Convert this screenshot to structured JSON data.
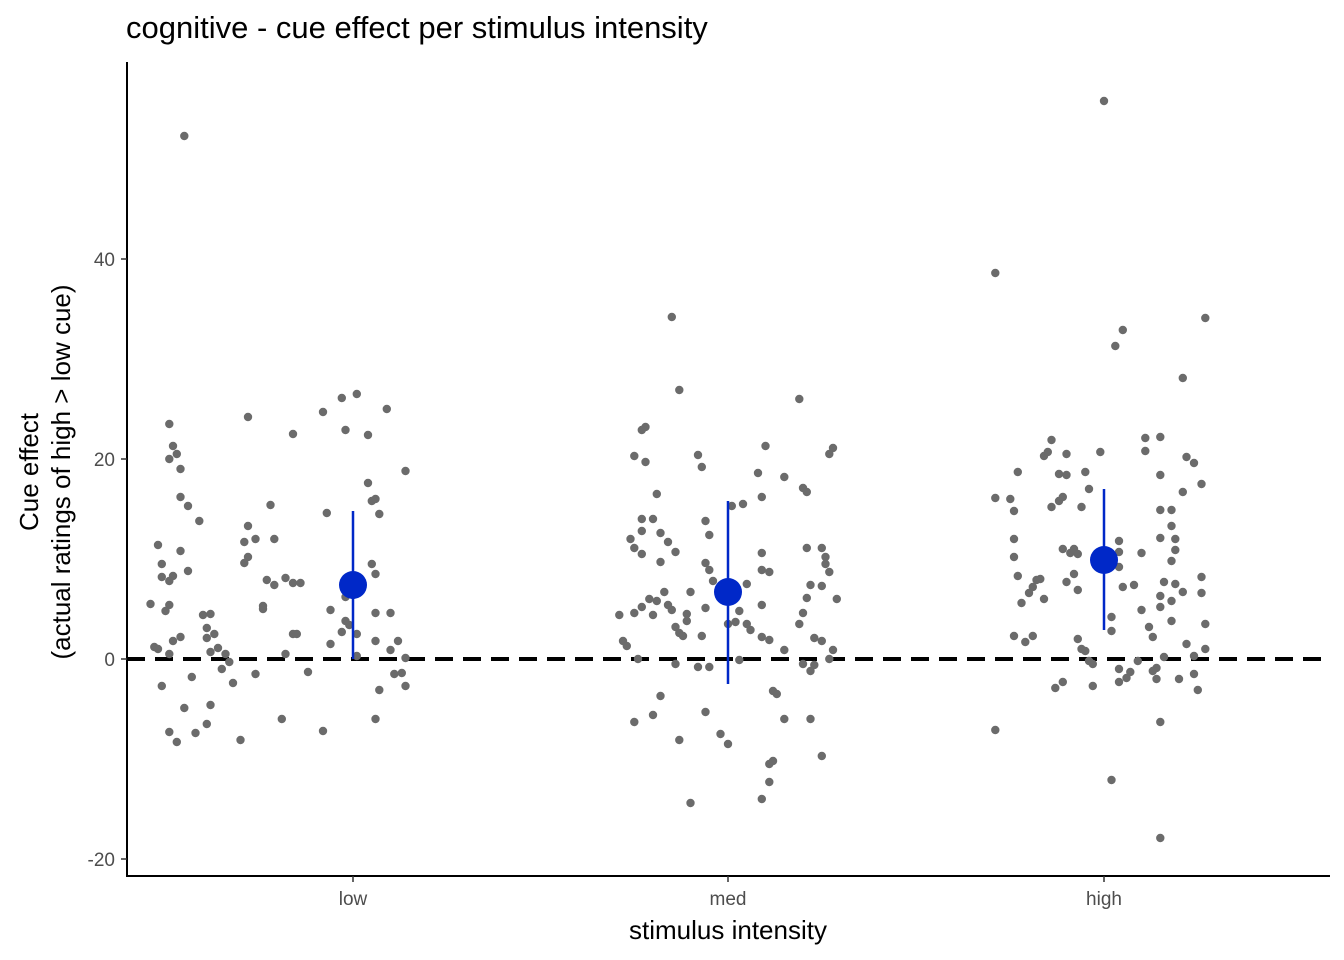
{
  "chart_data": {
    "type": "scatter",
    "title": "cognitive - cue effect per stimulus intensity",
    "xlabel": "stimulus intensity",
    "ylabel_lines": [
      "Cue effect",
      "(actual ratings of high > low cue)"
    ],
    "categories": [
      "low",
      "med",
      "high"
    ],
    "ylim": [
      -21.5,
      60
    ],
    "yticks": [
      -20,
      0,
      20,
      40
    ],
    "ytick_labels": [
      "-20",
      "0",
      "20",
      "40"
    ],
    "reference_line": 0,
    "grid": false,
    "colors": {
      "points": "#6b6b6b",
      "summary": "#0028c8",
      "reference": "#000000"
    },
    "points": {
      "low": [
        [
          -0.45,
          52.3
        ],
        [
          -0.49,
          23.5
        ],
        [
          -0.48,
          21.3
        ],
        [
          -0.47,
          20.5
        ],
        [
          -0.49,
          20.0
        ],
        [
          -0.46,
          19.0
        ],
        [
          -0.46,
          16.2
        ],
        [
          -0.44,
          15.3
        ],
        [
          -0.41,
          13.8
        ],
        [
          -0.52,
          11.4
        ],
        [
          -0.46,
          10.8
        ],
        [
          -0.51,
          9.5
        ],
        [
          -0.44,
          8.8
        ],
        [
          -0.48,
          8.3
        ],
        [
          -0.51,
          8.2
        ],
        [
          -0.49,
          7.8
        ],
        [
          -0.54,
          5.5
        ],
        [
          -0.49,
          5.4
        ],
        [
          -0.5,
          4.8
        ],
        [
          -0.53,
          1.2
        ],
        [
          -0.52,
          1.0
        ],
        [
          -0.49,
          0.5
        ],
        [
          -0.46,
          2.2
        ],
        [
          -0.48,
          1.8
        ],
        [
          -0.43,
          -1.8
        ],
        [
          -0.51,
          -2.7
        ],
        [
          -0.45,
          -4.9
        ],
        [
          -0.49,
          -7.3
        ],
        [
          -0.47,
          -8.3
        ],
        [
          -0.42,
          -7.4
        ],
        [
          -0.4,
          4.4
        ],
        [
          -0.39,
          3.1
        ],
        [
          -0.38,
          4.5
        ],
        [
          -0.37,
          2.5
        ],
        [
          -0.39,
          2.1
        ],
        [
          -0.36,
          1.1
        ],
        [
          -0.38,
          0.7
        ],
        [
          -0.35,
          -1.0
        ],
        [
          -0.38,
          -4.6
        ],
        [
          -0.39,
          -6.5
        ],
        [
          -0.32,
          -2.4
        ],
        [
          -0.34,
          0.5
        ],
        [
          -0.33,
          -0.3
        ],
        [
          -0.28,
          24.2
        ],
        [
          -0.28,
          13.3
        ],
        [
          -0.29,
          11.7
        ],
        [
          -0.26,
          12.0
        ],
        [
          -0.28,
          10.2
        ],
        [
          -0.29,
          9.6
        ],
        [
          -0.3,
          -8.1
        ],
        [
          -0.22,
          15.4
        ],
        [
          -0.21,
          12.0
        ],
        [
          -0.23,
          7.9
        ],
        [
          -0.21,
          7.4
        ],
        [
          -0.24,
          5.3
        ],
        [
          -0.24,
          5.0
        ],
        [
          -0.26,
          -1.5
        ],
        [
          -0.18,
          8.1
        ],
        [
          -0.16,
          7.6
        ],
        [
          -0.16,
          2.5
        ],
        [
          -0.15,
          2.5
        ],
        [
          -0.18,
          0.5
        ],
        [
          -0.19,
          -6.0
        ],
        [
          -0.16,
          22.5
        ],
        [
          -0.14,
          7.6
        ],
        [
          -0.12,
          -1.3
        ],
        [
          -0.08,
          24.7
        ],
        [
          -0.07,
          14.6
        ],
        [
          -0.06,
          4.9
        ],
        [
          -0.06,
          1.5
        ],
        [
          -0.08,
          -7.2
        ],
        [
          -0.03,
          26.1
        ],
        [
          -0.02,
          22.9
        ],
        [
          0.0,
          6.4
        ],
        [
          -0.02,
          6.2
        ],
        [
          -0.03,
          2.7
        ],
        [
          0.01,
          2.5
        ],
        [
          -0.01,
          3.4
        ],
        [
          0.01,
          0.3
        ],
        [
          -0.02,
          3.8
        ],
        [
          0.04,
          17.6
        ],
        [
          0.05,
          15.8
        ],
        [
          0.06,
          16.0
        ],
        [
          0.07,
          14.5
        ],
        [
          0.05,
          9.5
        ],
        [
          0.04,
          22.4
        ],
        [
          0.09,
          25.0
        ],
        [
          0.06,
          8.5
        ],
        [
          0.06,
          4.6
        ],
        [
          0.1,
          4.6
        ],
        [
          0.06,
          1.8
        ],
        [
          0.07,
          -3.1
        ],
        [
          0.06,
          -6.0
        ],
        [
          0.1,
          0.9
        ],
        [
          0.12,
          1.8
        ],
        [
          0.13,
          -1.4
        ],
        [
          0.14,
          0.1
        ],
        [
          0.14,
          -2.7
        ],
        [
          0.14,
          18.8
        ],
        [
          0.11,
          -1.5
        ],
        [
          0.01,
          26.5
        ]
      ],
      "med": [
        [
          -0.29,
          4.4
        ],
        [
          -0.28,
          1.8
        ],
        [
          -0.25,
          20.3
        ],
        [
          -0.24,
          0.0
        ],
        [
          -0.25,
          -6.3
        ],
        [
          -0.22,
          23.2
        ],
        [
          -0.23,
          22.9
        ],
        [
          -0.22,
          19.7
        ],
        [
          -0.23,
          14.0
        ],
        [
          -0.23,
          12.8
        ],
        [
          -0.26,
          12.0
        ],
        [
          -0.25,
          11.1
        ],
        [
          -0.23,
          10.5
        ],
        [
          -0.21,
          6.0
        ],
        [
          -0.23,
          5.2
        ],
        [
          -0.25,
          4.6
        ],
        [
          -0.27,
          1.3
        ],
        [
          -0.2,
          -5.6
        ],
        [
          -0.18,
          -3.7
        ],
        [
          -0.19,
          16.5
        ],
        [
          -0.2,
          14.0
        ],
        [
          -0.18,
          12.6
        ],
        [
          -0.18,
          9.7
        ],
        [
          -0.17,
          6.7
        ],
        [
          -0.19,
          5.8
        ],
        [
          -0.2,
          4.4
        ],
        [
          -0.15,
          34.2
        ],
        [
          -0.13,
          26.9
        ],
        [
          -0.16,
          11.7
        ],
        [
          -0.14,
          10.7
        ],
        [
          -0.16,
          5.4
        ],
        [
          -0.15,
          4.9
        ],
        [
          -0.14,
          3.2
        ],
        [
          -0.13,
          2.6
        ],
        [
          -0.12,
          2.3
        ],
        [
          -0.11,
          3.8
        ],
        [
          -0.1,
          6.7
        ],
        [
          -0.11,
          4.5
        ],
        [
          -0.14,
          -0.5
        ],
        [
          -0.13,
          -8.1
        ],
        [
          -0.1,
          -14.4
        ],
        [
          -0.08,
          20.4
        ],
        [
          -0.07,
          19.2
        ],
        [
          -0.06,
          13.8
        ],
        [
          -0.05,
          12.4
        ],
        [
          -0.06,
          9.6
        ],
        [
          -0.05,
          8.9
        ],
        [
          -0.04,
          7.8
        ],
        [
          -0.06,
          5.1
        ],
        [
          -0.07,
          2.3
        ],
        [
          -0.08,
          -0.8
        ],
        [
          -0.05,
          -0.8
        ],
        [
          -0.06,
          -5.3
        ],
        [
          -0.02,
          -7.5
        ],
        [
          0.0,
          -8.5
        ],
        [
          0.01,
          15.3
        ],
        [
          0.03,
          4.8
        ],
        [
          0.02,
          3.7
        ],
        [
          0.0,
          3.5
        ],
        [
          0.03,
          -0.1
        ],
        [
          0.04,
          15.5
        ],
        [
          0.05,
          7.5
        ],
        [
          0.06,
          2.9
        ],
        [
          0.05,
          3.5
        ],
        [
          0.09,
          16.2
        ],
        [
          0.09,
          10.6
        ],
        [
          0.09,
          8.9
        ],
        [
          0.09,
          5.4
        ],
        [
          0.09,
          2.2
        ],
        [
          0.1,
          21.3
        ],
        [
          0.08,
          18.6
        ],
        [
          0.11,
          8.7
        ],
        [
          0.11,
          1.9
        ],
        [
          0.12,
          -3.2
        ],
        [
          0.13,
          -3.5
        ],
        [
          0.12,
          -10.2
        ],
        [
          0.11,
          -10.5
        ],
        [
          0.09,
          -14.0
        ],
        [
          0.11,
          -12.3
        ],
        [
          0.15,
          18.2
        ],
        [
          0.15,
          0.9
        ],
        [
          0.15,
          -6.0
        ],
        [
          0.19,
          26.0
        ],
        [
          0.2,
          17.1
        ],
        [
          0.21,
          16.7
        ],
        [
          0.21,
          11.1
        ],
        [
          0.22,
          7.4
        ],
        [
          0.21,
          6.1
        ],
        [
          0.2,
          4.6
        ],
        [
          0.19,
          3.5
        ],
        [
          0.2,
          -0.5
        ],
        [
          0.22,
          -6.0
        ],
        [
          0.22,
          -1.2
        ],
        [
          0.25,
          -9.7
        ],
        [
          0.25,
          11.1
        ],
        [
          0.26,
          10.2
        ],
        [
          0.26,
          9.5
        ],
        [
          0.27,
          8.7
        ],
        [
          0.25,
          7.3
        ],
        [
          0.23,
          -0.6
        ],
        [
          0.27,
          20.5
        ],
        [
          0.28,
          21.1
        ],
        [
          0.29,
          6.0
        ],
        [
          0.28,
          0.9
        ],
        [
          0.27,
          0.0
        ],
        [
          0.25,
          1.8
        ],
        [
          0.23,
          2.1
        ]
      ],
      "high": [
        [
          -0.29,
          38.6
        ],
        [
          -0.29,
          16.1
        ],
        [
          -0.29,
          -7.1
        ],
        [
          -0.25,
          16.0
        ],
        [
          -0.24,
          14.8
        ],
        [
          -0.24,
          12.0
        ],
        [
          -0.24,
          10.2
        ],
        [
          -0.23,
          8.3
        ],
        [
          -0.23,
          18.7
        ],
        [
          -0.22,
          5.6
        ],
        [
          -0.24,
          2.3
        ],
        [
          -0.21,
          1.7
        ],
        [
          -0.2,
          6.6
        ],
        [
          -0.19,
          2.3
        ],
        [
          -0.19,
          7.2
        ],
        [
          -0.17,
          8.0
        ],
        [
          -0.18,
          7.9
        ],
        [
          -0.16,
          6.0
        ],
        [
          -0.16,
          20.3
        ],
        [
          -0.15,
          20.7
        ],
        [
          -0.14,
          21.9
        ],
        [
          -0.14,
          15.2
        ],
        [
          -0.13,
          -2.9
        ],
        [
          -0.12,
          15.8
        ],
        [
          -0.11,
          16.2
        ],
        [
          -0.11,
          11.0
        ],
        [
          -0.12,
          18.5
        ],
        [
          -0.1,
          18.4
        ],
        [
          -0.1,
          20.5
        ],
        [
          -0.1,
          7.7
        ],
        [
          -0.11,
          -2.3
        ],
        [
          -0.09,
          10.6
        ],
        [
          -0.08,
          8.5
        ],
        [
          -0.08,
          11.0
        ],
        [
          -0.07,
          10.5
        ],
        [
          -0.06,
          15.2
        ],
        [
          -0.07,
          6.9
        ],
        [
          -0.07,
          2.0
        ],
        [
          -0.06,
          1.0
        ],
        [
          -0.05,
          0.8
        ],
        [
          -0.05,
          18.7
        ],
        [
          -0.04,
          17.0
        ],
        [
          -0.04,
          -0.2
        ],
        [
          -0.03,
          -0.5
        ],
        [
          -0.03,
          -2.7
        ],
        [
          -0.01,
          20.7
        ],
        [
          0.0,
          55.8
        ],
        [
          0.03,
          31.3
        ],
        [
          0.05,
          32.9
        ],
        [
          0.04,
          11.8
        ],
        [
          0.04,
          10.7
        ],
        [
          0.05,
          7.2
        ],
        [
          0.04,
          9.2
        ],
        [
          0.02,
          4.2
        ],
        [
          0.02,
          2.8
        ],
        [
          0.04,
          -1.0
        ],
        [
          0.04,
          -2.3
        ],
        [
          0.02,
          -12.1
        ],
        [
          0.06,
          -1.9
        ],
        [
          0.07,
          -1.3
        ],
        [
          0.08,
          7.4
        ],
        [
          0.09,
          -0.2
        ],
        [
          0.1,
          10.6
        ],
        [
          0.11,
          22.1
        ],
        [
          0.11,
          20.8
        ],
        [
          0.1,
          4.9
        ],
        [
          0.12,
          3.2
        ],
        [
          0.13,
          2.2
        ],
        [
          0.14,
          -0.9
        ],
        [
          0.13,
          -1.2
        ],
        [
          0.14,
          -2.0
        ],
        [
          0.15,
          22.2
        ],
        [
          0.15,
          18.4
        ],
        [
          0.15,
          14.9
        ],
        [
          0.15,
          12.1
        ],
        [
          0.15,
          6.3
        ],
        [
          0.15,
          5.2
        ],
        [
          0.15,
          -6.3
        ],
        [
          0.15,
          -17.9
        ],
        [
          0.16,
          7.7
        ],
        [
          0.16,
          0.2
        ],
        [
          0.18,
          14.9
        ],
        [
          0.18,
          13.3
        ],
        [
          0.18,
          9.8
        ],
        [
          0.18,
          3.8
        ],
        [
          0.18,
          5.8
        ],
        [
          0.19,
          12.0
        ],
        [
          0.19,
          10.9
        ],
        [
          0.19,
          7.5
        ],
        [
          0.21,
          6.7
        ],
        [
          0.21,
          16.7
        ],
        [
          0.21,
          28.1
        ],
        [
          0.22,
          20.2
        ],
        [
          0.24,
          19.6
        ],
        [
          0.24,
          -1.5
        ],
        [
          0.24,
          0.3
        ],
        [
          0.26,
          17.5
        ],
        [
          0.26,
          8.2
        ],
        [
          0.26,
          6.6
        ],
        [
          0.27,
          3.5
        ],
        [
          0.27,
          1.0
        ],
        [
          0.25,
          -3.1
        ],
        [
          0.27,
          34.1
        ],
        [
          0.2,
          -2.0
        ],
        [
          0.22,
          1.5
        ]
      ]
    },
    "summary": [
      {
        "category": "low",
        "mean": 7.4,
        "lower": 0.0,
        "upper": 14.8
      },
      {
        "category": "med",
        "mean": 6.7,
        "lower": -2.5,
        "upper": 15.8
      },
      {
        "category": "high",
        "mean": 9.9,
        "lower": 2.9,
        "upper": 17.0
      }
    ]
  }
}
